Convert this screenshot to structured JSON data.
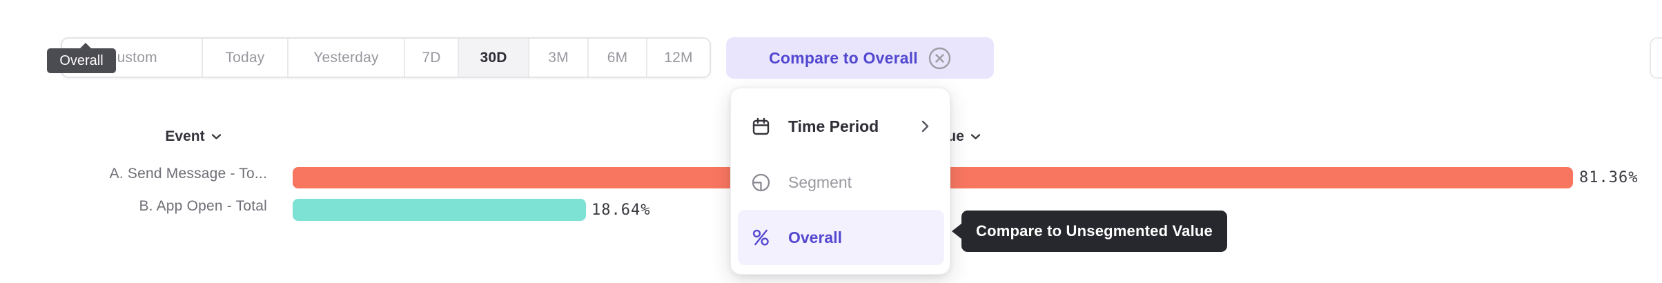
{
  "toolbar": {
    "time_ranges": [
      {
        "label": "Custom",
        "selected": false
      },
      {
        "label": "Today",
        "selected": false
      },
      {
        "label": "Yesterday",
        "selected": false
      },
      {
        "label": "7D",
        "selected": false
      },
      {
        "label": "30D",
        "selected": true
      },
      {
        "label": "3M",
        "selected": false
      },
      {
        "label": "6M",
        "selected": false
      },
      {
        "label": "12M",
        "selected": false
      }
    ],
    "compare_button": {
      "label": "Compare to Overall",
      "icon": "circle-x-icon"
    },
    "overall_tooltip": {
      "text": "Overall"
    }
  },
  "dropdown_menu": {
    "items": [
      {
        "label": "Time Period",
        "icon": "calendar-icon",
        "trailing_icon": "chevron-right-icon",
        "state": "default"
      },
      {
        "label": "Segment",
        "icon": "pie-segment-icon",
        "state": "dimmed"
      },
      {
        "label": "Overall",
        "icon": "percent-icon",
        "state": "highlighted"
      }
    ]
  },
  "tooltip": {
    "text": "Compare to Unsegmented Value"
  },
  "chart_data": {
    "type": "bar",
    "orientation": "horizontal",
    "column_headers": {
      "event": "Event",
      "value": "Value"
    },
    "categories": [
      "A. Send Message - To...",
      "B. App Open - Total"
    ],
    "values": [
      81.36,
      18.64
    ],
    "value_labels": [
      "81.36%",
      "18.64%"
    ],
    "colors": [
      "#f8765f",
      "#7de1d3"
    ],
    "xlim": [
      0,
      100
    ],
    "grid": false,
    "legend": "none"
  },
  "colors": {
    "accent_purple": "#5247d0",
    "accent_purple_bg": "#e9e5fc",
    "highlight_row_bg": "#f3f1fd",
    "bar_orange": "#f8765f",
    "bar_teal": "#7de1d3",
    "tooltip_dark": "#27272e",
    "tooltip_gray": "#4b4b52",
    "selected_segment_bg": "#f3f3f5"
  }
}
